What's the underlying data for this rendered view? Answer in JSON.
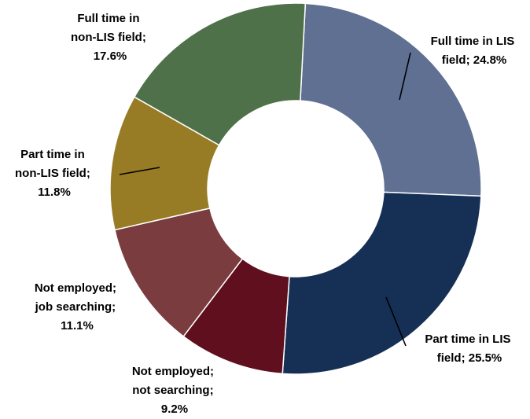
{
  "chart_data": {
    "type": "pie",
    "donut": true,
    "title": "",
    "slices": [
      {
        "line1": "Full time in LIS",
        "line2": "field; 24.8%",
        "line3": "",
        "value": 24.8,
        "color": "#5f7093"
      },
      {
        "line1": "Part time in LIS",
        "line2": "field; 25.5%",
        "line3": "",
        "value": 25.5,
        "color": "#163055"
      },
      {
        "line1": "Not employed;",
        "line2": "not searching;",
        "line3": "9.2%",
        "value": 9.2,
        "color": "#5f0f1d"
      },
      {
        "line1": "Not employed;",
        "line2": "job searching;",
        "line3": "11.1%",
        "value": 11.1,
        "color": "#7b3c3f"
      },
      {
        "line1": "Part time in",
        "line2": "non-LIS field;",
        "line3": "11.8%",
        "value": 11.8,
        "color": "#977b25"
      },
      {
        "line1": "Full time in",
        "line2": "non-LIS field;",
        "line3": "17.6%",
        "value": 17.6,
        "color": "#4f7149"
      }
    ],
    "legend": "none"
  }
}
